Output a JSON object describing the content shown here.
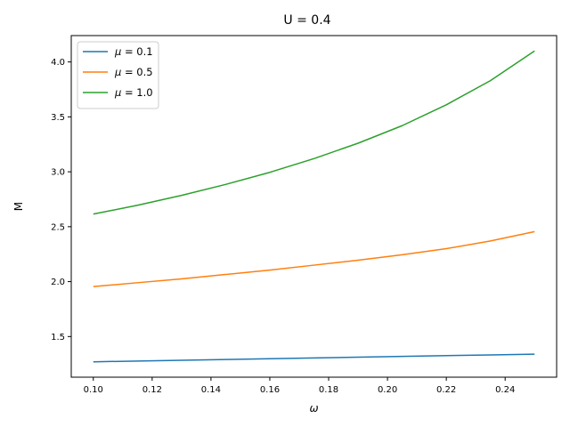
{
  "chart_data": {
    "type": "line",
    "title": "U = 0.4",
    "xlabel": "ω",
    "ylabel": "M",
    "xlim": [
      0.0925,
      0.2575
    ],
    "ylim": [
      1.13,
      4.24
    ],
    "xticks": [
      0.1,
      0.12,
      0.14,
      0.16,
      0.18,
      0.2,
      0.22,
      0.24
    ],
    "xtick_labels": [
      "0.10",
      "0.12",
      "0.14",
      "0.16",
      "0.18",
      "0.20",
      "0.22",
      "0.24"
    ],
    "yticks": [
      1.5,
      2.0,
      2.5,
      3.0,
      3.5,
      4.0
    ],
    "ytick_labels": [
      "1.5",
      "2.0",
      "2.5",
      "3.0",
      "3.5",
      "4.0"
    ],
    "grid": false,
    "legend_position": "top-left",
    "x": [
      0.1,
      0.115,
      0.13,
      0.145,
      0.16,
      0.175,
      0.19,
      0.205,
      0.22,
      0.235,
      0.25
    ],
    "series": [
      {
        "name": "μ = 0.1",
        "legend_symbol": "μ",
        "legend_value": " = 0.1",
        "color": "#1f77b4",
        "values": [
          1.27,
          1.277,
          1.284,
          1.291,
          1.298,
          1.305,
          1.312,
          1.319,
          1.326,
          1.333,
          1.34
        ]
      },
      {
        "name": "μ = 0.5",
        "legend_symbol": "μ",
        "legend_value": " = 0.5",
        "color": "#ff7f0e",
        "values": [
          1.955,
          1.99,
          2.025,
          2.065,
          2.105,
          2.15,
          2.195,
          2.245,
          2.3,
          2.37,
          2.455
        ]
      },
      {
        "name": "μ = 1.0",
        "legend_symbol": "μ",
        "legend_value": " = 1.0",
        "color": "#2ca02c",
        "values": [
          2.615,
          2.695,
          2.785,
          2.885,
          2.995,
          3.12,
          3.26,
          3.42,
          3.61,
          3.83,
          4.1
        ]
      }
    ]
  }
}
